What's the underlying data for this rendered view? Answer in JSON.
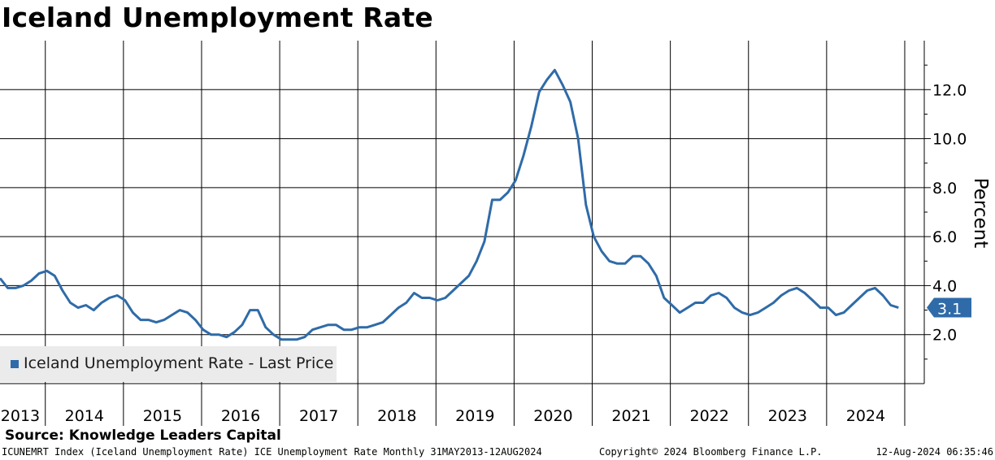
{
  "title": "Iceland Unemployment Rate",
  "source": "Source: Knowledge Leaders Capital",
  "footer": {
    "left": "ICUNEMRT Index (Iceland Unemployment Rate) ICE Unemployment Rate  Monthly 31MAY2013-12AUG2024",
    "middle": "Copyright© 2024 Bloomberg Finance L.P.",
    "right": "12-Aug-2024 06:35:46"
  },
  "legend": {
    "label": "Iceland Unemployment Rate - Last Price"
  },
  "colors": {
    "series": "#2f6ba8",
    "grid": "#000000"
  },
  "chart_data": {
    "type": "line",
    "title": "Iceland Unemployment Rate",
    "ylabel": "Percent",
    "xlabel": "",
    "ylim": [
      0,
      14
    ],
    "yticks": [
      2.0,
      4.0,
      6.0,
      8.0,
      10.0,
      12.0
    ],
    "ytick_labels": [
      "2.0",
      "4.0",
      "6.0",
      "8.0",
      "10.0",
      "12.0"
    ],
    "x_start": 2013.0,
    "x_end": 2024.83,
    "year_labels": [
      "2013",
      "2014",
      "2015",
      "2016",
      "2017",
      "2018",
      "2019",
      "2020",
      "2021",
      "2022",
      "2023",
      "2024"
    ],
    "grid": true,
    "last_value_label": "3.1",
    "last_value": 3.1,
    "series": [
      {
        "name": "Iceland Unemployment Rate - Last Price",
        "x": [
          2013.0,
          2013.1,
          2013.2,
          2013.3,
          2013.4,
          2013.5,
          2013.6,
          2013.7,
          2013.8,
          2013.9,
          2014.0,
          2014.1,
          2014.2,
          2014.3,
          2014.4,
          2014.5,
          2014.6,
          2014.7,
          2014.8,
          2014.9,
          2015.0,
          2015.1,
          2015.2,
          2015.3,
          2015.4,
          2015.5,
          2015.6,
          2015.7,
          2015.8,
          2015.9,
          2016.0,
          2016.1,
          2016.2,
          2016.3,
          2016.4,
          2016.5,
          2016.6,
          2016.7,
          2016.8,
          2016.9,
          2017.0,
          2017.1,
          2017.2,
          2017.3,
          2017.4,
          2017.5,
          2017.6,
          2017.7,
          2017.8,
          2017.9,
          2018.0,
          2018.1,
          2018.2,
          2018.3,
          2018.4,
          2018.5,
          2018.6,
          2018.7,
          2018.8,
          2018.9,
          2019.0,
          2019.1,
          2019.2,
          2019.3,
          2019.4,
          2019.5,
          2019.6,
          2019.7,
          2019.8,
          2019.9,
          2020.0,
          2020.1,
          2020.2,
          2020.3,
          2020.4,
          2020.5,
          2020.6,
          2020.7,
          2020.8,
          2020.9,
          2021.0,
          2021.1,
          2021.2,
          2021.3,
          2021.4,
          2021.5,
          2021.6,
          2021.7,
          2021.8,
          2021.9,
          2022.0,
          2022.1,
          2022.2,
          2022.3,
          2022.4,
          2022.5,
          2022.6,
          2022.7,
          2022.8,
          2022.9,
          2023.0,
          2023.1,
          2023.2,
          2023.3,
          2023.4,
          2023.5,
          2023.6,
          2023.7,
          2023.8,
          2023.9,
          2024.0,
          2024.1,
          2024.2,
          2024.3,
          2024.4,
          2024.5
        ],
        "values": [
          4.3,
          3.9,
          3.9,
          4.0,
          4.2,
          4.5,
          4.6,
          4.4,
          3.8,
          3.3,
          3.1,
          3.2,
          3.0,
          3.3,
          3.5,
          3.6,
          3.4,
          2.9,
          2.6,
          2.6,
          2.5,
          2.6,
          2.8,
          3.0,
          2.9,
          2.6,
          2.2,
          2.0,
          2.0,
          1.9,
          2.1,
          2.4,
          3.0,
          3.0,
          2.3,
          2.0,
          1.8,
          1.8,
          1.8,
          1.9,
          2.2,
          2.3,
          2.4,
          2.4,
          2.2,
          2.2,
          2.3,
          2.3,
          2.4,
          2.5,
          2.8,
          3.1,
          3.3,
          3.7,
          3.5,
          3.5,
          3.4,
          3.5,
          3.8,
          4.1,
          4.4,
          5.0,
          5.8,
          7.5,
          7.5,
          7.8,
          8.3,
          9.3,
          10.5,
          11.9,
          12.4,
          12.8,
          12.2,
          11.5,
          10.0,
          7.3,
          6.0,
          5.4,
          5.0,
          4.9,
          4.9,
          5.2,
          5.2,
          4.9,
          4.4,
          3.5,
          3.2,
          2.9,
          3.1,
          3.3,
          3.3,
          3.6,
          3.7,
          3.5,
          3.1,
          2.9,
          2.8,
          2.9,
          3.1,
          3.3,
          3.6,
          3.8,
          3.9,
          3.7,
          3.4,
          3.1,
          3.1,
          2.8,
          2.9,
          3.2,
          3.5,
          3.8,
          3.9,
          3.6,
          3.2,
          3.1
        ]
      }
    ]
  }
}
